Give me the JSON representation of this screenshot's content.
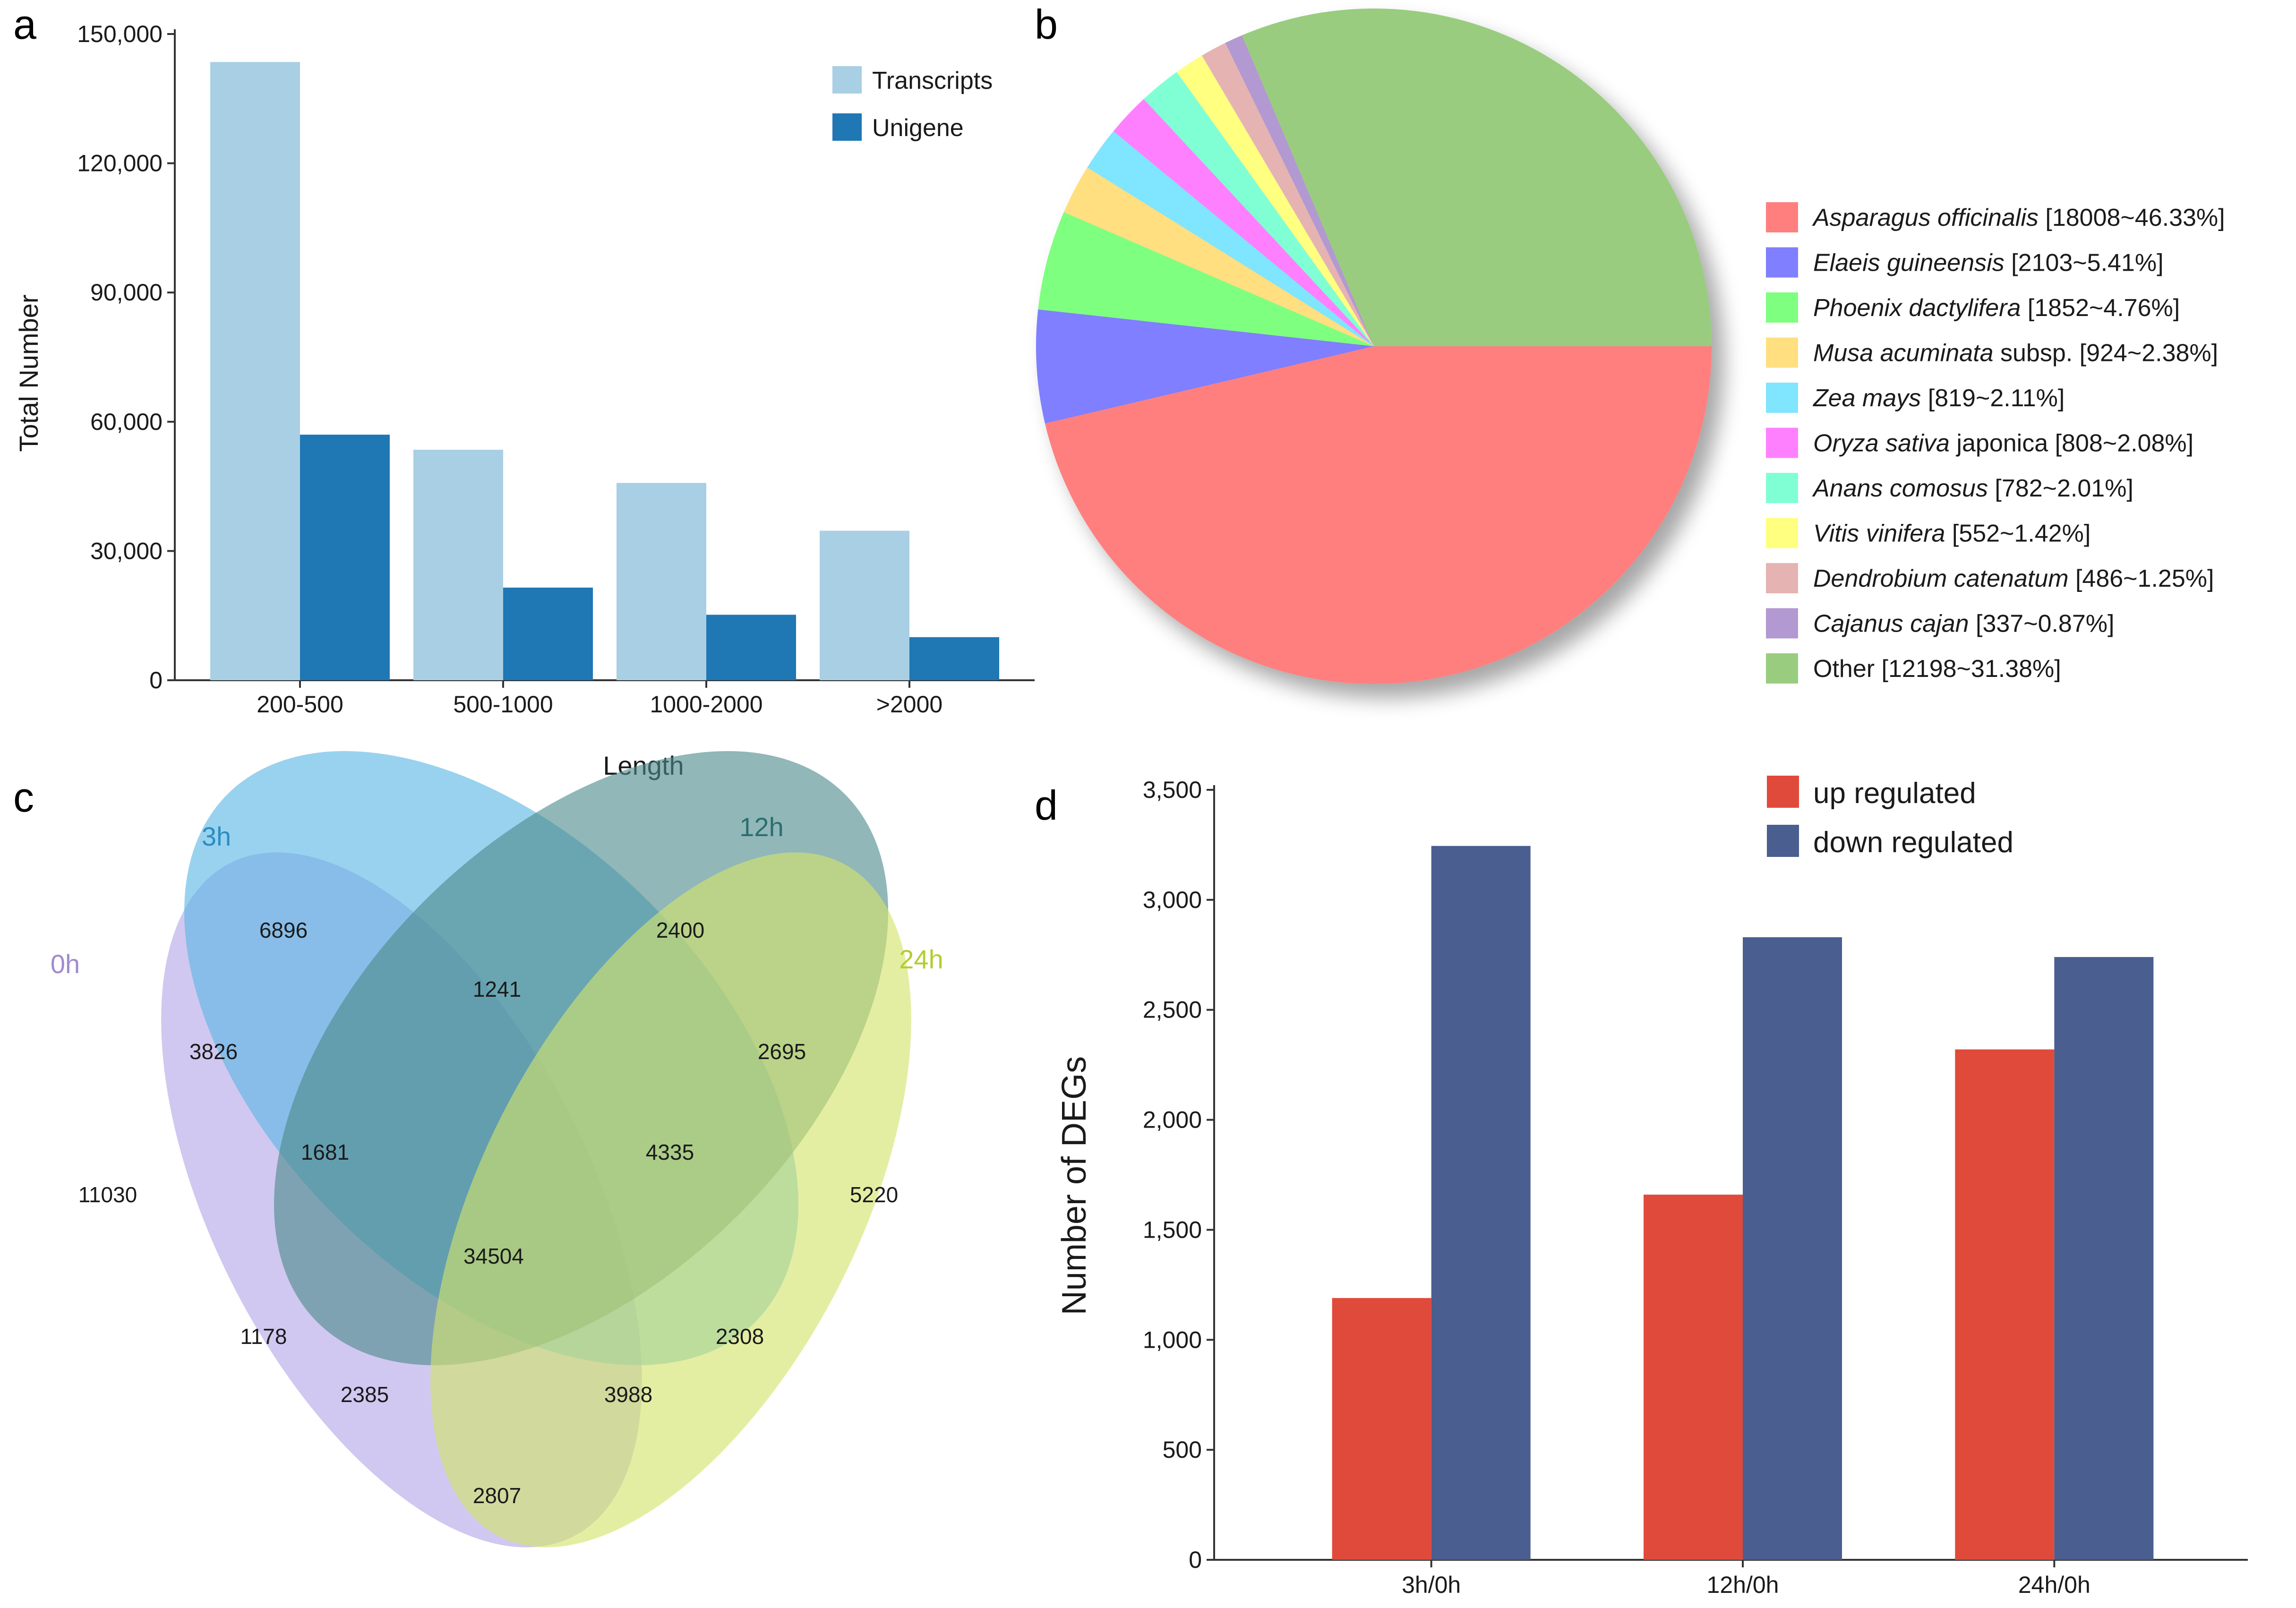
{
  "panels": {
    "a": {
      "letter": "a"
    },
    "b": {
      "letter": "b"
    },
    "c": {
      "letter": "c"
    },
    "d": {
      "letter": "d"
    }
  },
  "chart_data": [
    {
      "panel": "a",
      "type": "bar",
      "categories": [
        "200-500",
        "500-1000",
        "1000-2000",
        ">2000"
      ],
      "series": [
        {
          "name": "Transcripts",
          "color": "#a8cfe3",
          "values": [
            143500,
            53500,
            45800,
            34700
          ]
        },
        {
          "name": "Unigene",
          "color": "#1f77b4",
          "values": [
            57000,
            21500,
            15200,
            10000
          ]
        }
      ],
      "ylim": [
        0,
        150000
      ],
      "yticks": [
        0,
        30000,
        60000,
        90000,
        120000,
        150000
      ],
      "ytick_labels": [
        "0",
        "30,000",
        "60,000",
        "90,000",
        "120,000",
        "150,000"
      ],
      "xlabel": "Length",
      "ylabel": "Total Number",
      "legend": "top-right"
    },
    {
      "panel": "b",
      "type": "pie",
      "slices": [
        {
          "species": "Asparagus officinalis",
          "suffix": "",
          "info": "[18008~46.33%]",
          "value": 46.33,
          "color": "#ff7f7f"
        },
        {
          "species": "Elaeis guineensis",
          "suffix": "",
          "info": "[2103~5.41%]",
          "value": 5.41,
          "color": "#7f7fff"
        },
        {
          "species": "Phoenix dactylifera",
          "suffix": "",
          "info": "[1852~4.76%]",
          "value": 4.76,
          "color": "#7fff7f"
        },
        {
          "species": "Musa acuminata",
          "suffix": " subsp.",
          "info": "[924~2.38%]",
          "value": 2.38,
          "color": "#ffdf80"
        },
        {
          "species": "Zea mays",
          "suffix": "",
          "info": "[819~2.11%]",
          "value": 2.11,
          "color": "#80e5ff"
        },
        {
          "species": "Oryza sativa",
          "suffix": " japonica",
          "info": "[808~2.08%]",
          "value": 2.08,
          "color": "#ff80ff"
        },
        {
          "species": "Anans comosus",
          "suffix": "",
          "info": "[782~2.01%]",
          "value": 2.01,
          "color": "#80ffd4"
        },
        {
          "species": "Vitis vinifera",
          "suffix": "",
          "info": "[552~1.42%]",
          "value": 1.42,
          "color": "#ffff80"
        },
        {
          "species": "Dendrobium catenatum",
          "suffix": "",
          "info": "[486~1.25%]",
          "value": 1.25,
          "color": "#e6b3b3"
        },
        {
          "species": "Cajanus cajan",
          "suffix": "",
          "info": "[337~0.87%]",
          "value": 0.87,
          "color": "#b399d1"
        },
        {
          "species": "",
          "suffix": "Other",
          "info": "[12198~31.38%]",
          "value": 31.38,
          "color": "#99cc7f"
        }
      ],
      "legend": "right"
    },
    {
      "panel": "c",
      "type": "venn",
      "sets": [
        {
          "name": "0h",
          "color": "#b3a6e6",
          "label_color": "#a08ad0"
        },
        {
          "name": "3h",
          "color": "#5ab7e3",
          "label_color": "#2b8cc4"
        },
        {
          "name": "12h",
          "color": "#4d8a8c",
          "label_color": "#2c6e70"
        },
        {
          "name": "24h",
          "color": "#d4e36b",
          "label_color": "#b5cc2e"
        }
      ],
      "regions": [
        {
          "id": "0h",
          "value": 11030
        },
        {
          "id": "3h",
          "value": 6896
        },
        {
          "id": "12h",
          "value": 2400
        },
        {
          "id": "24h",
          "value": 5220
        },
        {
          "id": "0h_3h",
          "value": 3826
        },
        {
          "id": "3h_12h",
          "value": 1241
        },
        {
          "id": "12h_24h",
          "value": 2695
        },
        {
          "id": "0h_3h_12h",
          "value": 1681
        },
        {
          "id": "3h_12h_24h",
          "value": 4335
        },
        {
          "id": "all",
          "value": 34504
        },
        {
          "id": "0h_12h",
          "value": 1178
        },
        {
          "id": "3h_24h",
          "value": 2308
        },
        {
          "id": "0h_12h_24h",
          "value": 2385
        },
        {
          "id": "0h_3h_24h",
          "value": 3988
        },
        {
          "id": "0h_24h",
          "value": 2807
        }
      ]
    },
    {
      "panel": "d",
      "type": "bar",
      "categories": [
        "3h/0h",
        "12h/0h",
        "24h/0h"
      ],
      "series": [
        {
          "name": "up regulated",
          "color": "#e04a3a",
          "values": [
            1190,
            1660,
            2320
          ]
        },
        {
          "name": "down regulated",
          "color": "#4a5e8f",
          "values": [
            3245,
            2830,
            2740
          ]
        }
      ],
      "ylim": [
        0,
        3500
      ],
      "yticks": [
        0,
        500,
        1000,
        1500,
        2000,
        2500,
        3000,
        3500
      ],
      "ytick_labels": [
        "0",
        "500",
        "1,000",
        "1,500",
        "2,000",
        "2,500",
        "3,000",
        "3,500"
      ],
      "xlabel": "",
      "ylabel": "Number of DEGs",
      "legend": "top"
    }
  ]
}
